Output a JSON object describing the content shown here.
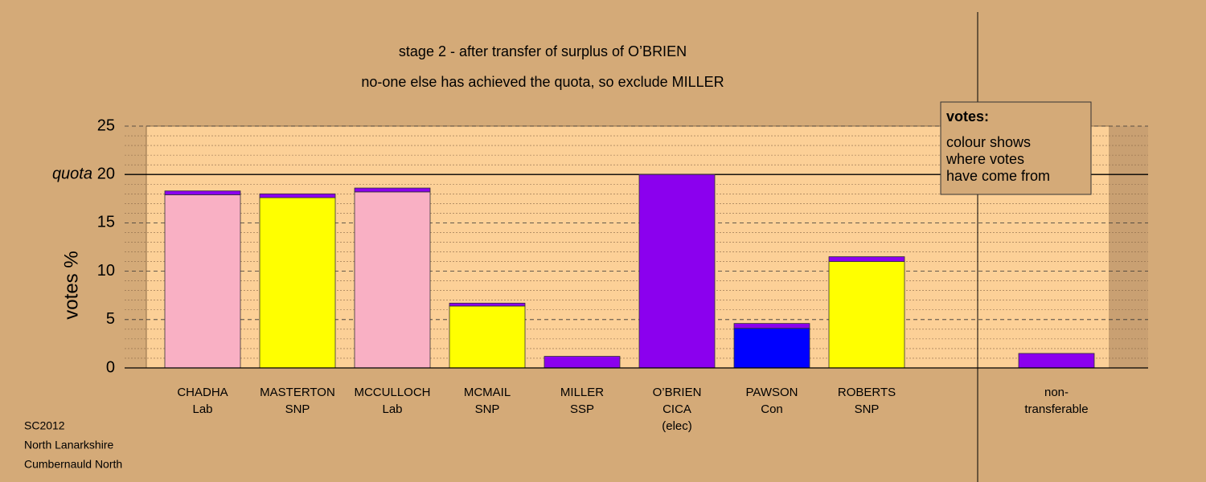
{
  "chart_data": {
    "type": "bar",
    "stacked": true,
    "title": "stage 2 - after transfer of surplus of O’BRIEN",
    "subtitle": "no-one else has achieved the quota, so exclude MILLER",
    "y_label": "votes %",
    "quota": {
      "value": 20,
      "label": "quota"
    },
    "categories": [
      [
        "CHADHA",
        "Lab"
      ],
      [
        "MASTERTON",
        "SNP"
      ],
      [
        "MCCULLOCH",
        "Lab"
      ],
      [
        "MCMAIL",
        "SNP"
      ],
      [
        "MILLER",
        "SSP"
      ],
      [
        "O’BRIEN",
        "CICA",
        "(elec)"
      ],
      [
        "PAWSON",
        "Con"
      ],
      [
        "ROBERTS",
        "SNP"
      ],
      null,
      [
        "non-",
        "transferable"
      ]
    ],
    "series": [
      {
        "colors": [
          "#f9b0c4",
          "#ffff00",
          "#f9b0c4",
          "#ffff00",
          "#8b00ee",
          "#8b00ee",
          "#0000ff",
          "#ffff00",
          null,
          "#8b00ee"
        ],
        "values": [
          17.9,
          17.6,
          18.2,
          6.4,
          1.2,
          20,
          4.1,
          11.0,
          null,
          1.5
        ]
      },
      {
        "color": "#8b00ee",
        "values": [
          0.4,
          0.4,
          0.4,
          0.3,
          0,
          0,
          0.5,
          0.5,
          null,
          0
        ]
      }
    ],
    "ylim": [
      0,
      25
    ],
    "yticks": [
      0,
      5,
      10,
      15,
      20,
      25
    ],
    "grid": true,
    "minor_grid": true,
    "legend": {
      "title": "votes:",
      "lines": [
        "colour shows",
        "where votes",
        "have come from"
      ]
    },
    "footer": [
      "SC2012",
      "North Lanarkshire",
      "Cumbernauld North"
    ]
  }
}
